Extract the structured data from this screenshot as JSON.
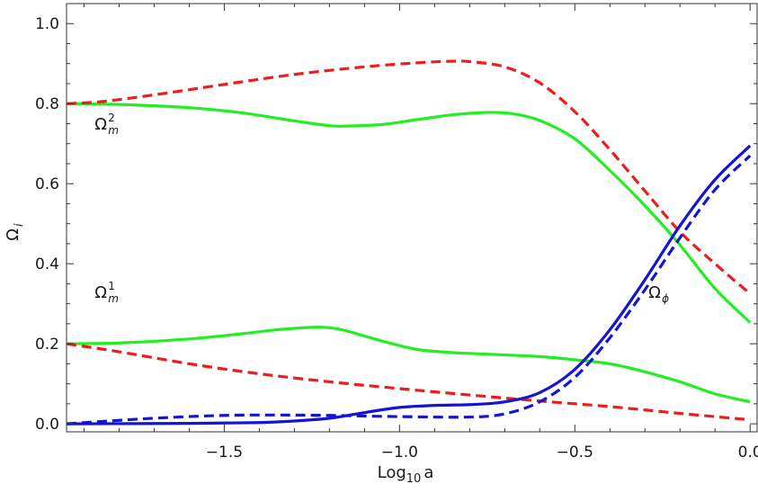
{
  "chart_data": {
    "type": "line",
    "xlabel": {
      "base": "Log",
      "sub": "10",
      "tail": "a"
    },
    "ylabel": {
      "base": "Ω",
      "sub": "i"
    },
    "xlim": [
      -1.95,
      0.02
    ],
    "ylim": [
      -0.02,
      1.05
    ],
    "x_ticks": [
      -1.5,
      -1.0,
      -0.5,
      0.0
    ],
    "x_tick_labels": [
      "−1.5",
      "−1.0",
      "−0.5",
      "0.0"
    ],
    "y_ticks": [
      0.0,
      0.2,
      0.4,
      0.6,
      0.8,
      1.0
    ],
    "y_tick_labels": [
      "0.0",
      "0.2",
      "0.4",
      "0.6",
      "0.8",
      "1.0"
    ],
    "grid": false,
    "colors": {
      "green": "#22ee22",
      "red": "#ee1c1c",
      "blue": "#1414d4"
    },
    "annotations": [
      {
        "base": "Ω",
        "sub": "m",
        "sup": "2",
        "x": -1.87,
        "y": 0.735
      },
      {
        "base": "Ω",
        "sub": "m",
        "sup": "1",
        "x": -1.87,
        "y": 0.315
      },
      {
        "base": "Ω",
        "sub": "ϕ",
        "sup": "",
        "x": -0.29,
        "y": 0.315
      }
    ],
    "series": [
      {
        "color": "green",
        "style": "solid",
        "x": [
          -1.95,
          -1.8,
          -1.6,
          -1.45,
          -1.3,
          -1.2,
          -1.15,
          -1.05,
          -0.95,
          -0.85,
          -0.75,
          -0.68,
          -0.6,
          -0.5,
          -0.4,
          -0.3,
          -0.2,
          -0.1,
          0.0
        ],
        "y": [
          0.8,
          0.798,
          0.79,
          0.777,
          0.757,
          0.745,
          0.744,
          0.748,
          0.76,
          0.772,
          0.778,
          0.775,
          0.758,
          0.712,
          0.633,
          0.545,
          0.447,
          0.338,
          0.253
        ]
      },
      {
        "color": "red",
        "style": "dashed",
        "x": [
          -1.95,
          -1.85,
          -1.7,
          -1.5,
          -1.3,
          -1.1,
          -0.95,
          -0.85,
          -0.8,
          -0.7,
          -0.6,
          -0.5,
          -0.4,
          -0.3,
          -0.2,
          -0.1,
          0.0
        ],
        "y": [
          0.8,
          0.805,
          0.822,
          0.848,
          0.873,
          0.892,
          0.902,
          0.906,
          0.905,
          0.892,
          0.852,
          0.78,
          0.685,
          0.582,
          0.48,
          0.4,
          0.325
        ]
      },
      {
        "color": "green",
        "style": "solid",
        "x": [
          -1.95,
          -1.8,
          -1.6,
          -1.45,
          -1.35,
          -1.25,
          -1.2,
          -1.15,
          -1.05,
          -0.95,
          -0.85,
          -0.75,
          -0.6,
          -0.5,
          -0.4,
          -0.3,
          -0.2,
          -0.1,
          0.0
        ],
        "y": [
          0.2,
          0.202,
          0.212,
          0.225,
          0.235,
          0.241,
          0.24,
          0.232,
          0.207,
          0.186,
          0.178,
          0.174,
          0.168,
          0.16,
          0.15,
          0.13,
          0.105,
          0.075,
          0.055
        ]
      },
      {
        "color": "red",
        "style": "dashed",
        "x": [
          -1.95,
          -1.8,
          -1.6,
          -1.4,
          -1.2,
          -1.0,
          -0.8,
          -0.6,
          -0.4,
          -0.2,
          0.0
        ],
        "y": [
          0.2,
          0.18,
          0.15,
          0.125,
          0.105,
          0.088,
          0.072,
          0.057,
          0.043,
          0.026,
          0.01
        ]
      },
      {
        "color": "blue",
        "style": "solid",
        "x": [
          -1.95,
          -1.6,
          -1.4,
          -1.3,
          -1.2,
          -1.1,
          -1.0,
          -0.9,
          -0.8,
          -0.7,
          -0.6,
          -0.5,
          -0.4,
          -0.3,
          -0.2,
          -0.1,
          0.0
        ],
        "y": [
          0.0,
          0.001,
          0.003,
          0.007,
          0.014,
          0.028,
          0.041,
          0.046,
          0.048,
          0.055,
          0.078,
          0.136,
          0.235,
          0.36,
          0.495,
          0.61,
          0.695
        ]
      },
      {
        "color": "blue",
        "style": "dashed",
        "x": [
          -1.95,
          -1.7,
          -1.5,
          -1.35,
          -1.2,
          -1.0,
          -0.8,
          -0.7,
          -0.6,
          -0.5,
          -0.4,
          -0.3,
          -0.2,
          -0.1,
          0.0
        ],
        "y": [
          0.0,
          0.014,
          0.021,
          0.022,
          0.021,
          0.018,
          0.017,
          0.025,
          0.055,
          0.116,
          0.215,
          0.335,
          0.465,
          0.585,
          0.67
        ]
      }
    ]
  }
}
